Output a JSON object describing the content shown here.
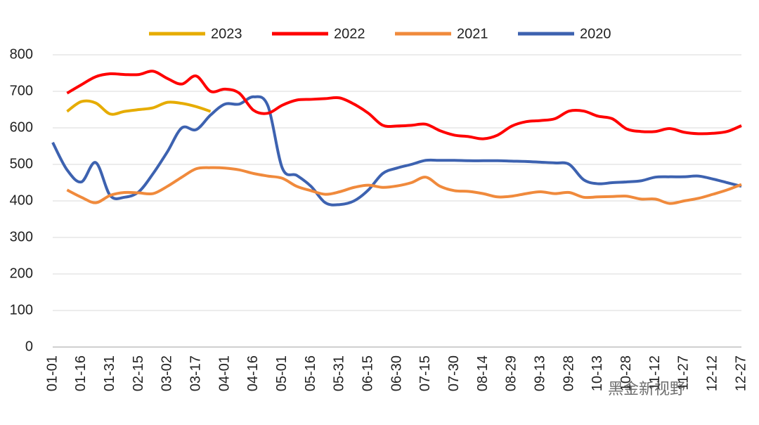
{
  "chart_data": {
    "type": "line",
    "categories": [
      "01-01",
      null,
      "01-16",
      null,
      "01-31",
      null,
      "02-15",
      null,
      "03-02",
      null,
      "03-17",
      null,
      "04-01",
      null,
      "04-16",
      null,
      "05-01",
      null,
      "05-16",
      null,
      "05-31",
      null,
      "06-15",
      null,
      "06-30",
      null,
      "07-15",
      null,
      "07-30",
      null,
      "08-14",
      null,
      "08-29",
      null,
      "09-13",
      null,
      "09-28",
      null,
      "10-13",
      null,
      "10-28",
      null,
      "11-12",
      null,
      "11-27",
      null,
      "12-12",
      null,
      "12-27"
    ],
    "series": [
      {
        "name": "2023",
        "color": "#e6ac00",
        "values": [
          null,
          645,
          672,
          668,
          638,
          645,
          650,
          655,
          670,
          667,
          658,
          645,
          null,
          null,
          null,
          null,
          null,
          null,
          null,
          null,
          null,
          null,
          null,
          null,
          null,
          null,
          null,
          null,
          null,
          null,
          null,
          null,
          null,
          null,
          null,
          null,
          null,
          null,
          null,
          null,
          null,
          null,
          null,
          null,
          null,
          null,
          null,
          null,
          null
        ]
      },
      {
        "name": "2022",
        "color": "#ff0000",
        "values": [
          null,
          695,
          718,
          740,
          748,
          746,
          746,
          755,
          735,
          720,
          742,
          700,
          706,
          695,
          648,
          640,
          662,
          676,
          678,
          680,
          682,
          665,
          640,
          607,
          605,
          607,
          610,
          592,
          580,
          576,
          570,
          580,
          605,
          617,
          620,
          625,
          646,
          646,
          632,
          625,
          597,
          590,
          590,
          598,
          588,
          584,
          585,
          590,
          606
        ]
      },
      {
        "name": "2021",
        "color": "#f08a3c",
        "values": [
          null,
          430,
          410,
          395,
          415,
          423,
          422,
          420,
          440,
          465,
          488,
          491,
          490,
          485,
          475,
          468,
          462,
          440,
          428,
          418,
          425,
          437,
          443,
          437,
          441,
          450,
          465,
          440,
          428,
          426,
          420,
          411,
          413,
          420,
          425,
          420,
          423,
          410,
          411,
          412,
          413,
          405,
          405,
          393,
          400,
          407,
          418,
          430,
          445
        ]
      },
      {
        "name": "2020",
        "color": "#3d62b0",
        "values": [
          560,
          485,
          452,
          505,
          415,
          410,
          425,
          475,
          535,
          600,
          595,
          635,
          665,
          665,
          685,
          660,
          490,
          470,
          440,
          395,
          390,
          400,
          430,
          475,
          490,
          500,
          511,
          511,
          511,
          510,
          510,
          510,
          509,
          508,
          506,
          504,
          500,
          458,
          447,
          450,
          452,
          455,
          465,
          466,
          466,
          468,
          460,
          450,
          440
        ]
      }
    ],
    "ylim": [
      0,
      800
    ],
    "yticks": [
      0,
      100,
      200,
      300,
      400,
      500,
      600,
      700,
      800
    ],
    "grid": true,
    "legend": "top",
    "watermark": "黑金新视野"
  }
}
